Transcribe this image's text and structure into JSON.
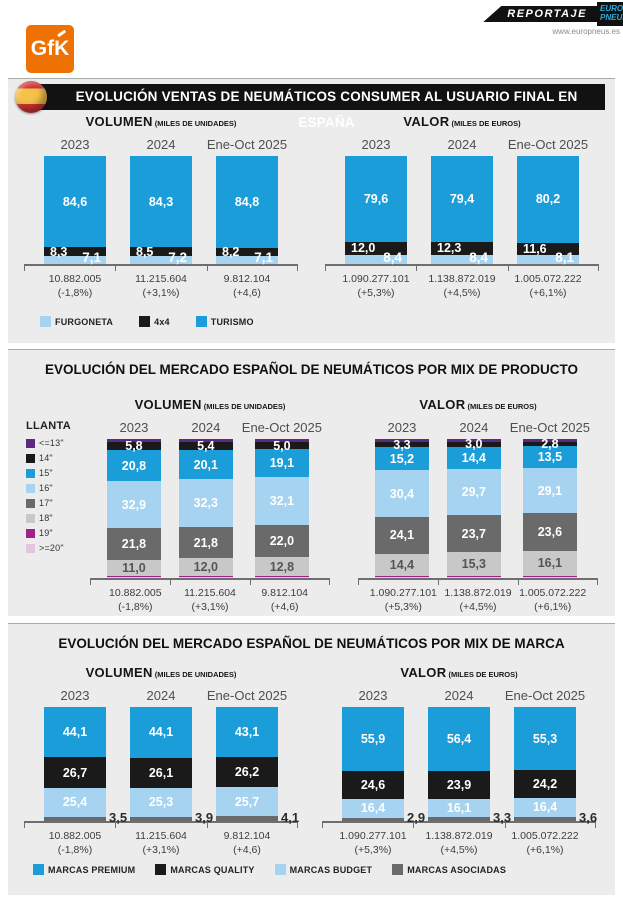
{
  "header": {
    "gfk_logo": "GfK",
    "reportaje": "REPORTAJE",
    "europneus_line1": "EURO",
    "europneus_line2": "PNEUS",
    "website": "www.europneus.es"
  },
  "sections": [
    {
      "id": "consumer",
      "title": "EVOLUCIÓN VENTAS DE NEUMÁTICOS CONSUMER AL USUARIO FINAL EN ESPAÑA",
      "legend": [
        {
          "label": "FURGONETA",
          "color": "#a6d3f0"
        },
        {
          "label": "4x4",
          "color": "#1a1a1a"
        },
        {
          "label": "TURISMO",
          "color": "#1b9dd9"
        }
      ]
    },
    {
      "id": "producto",
      "title": "EVOLUCIÓN DEL MERCADO ESPAÑOL DE NEUMÁTICOS POR MIX DE PRODUCTO",
      "legend_title": "LLANTA",
      "legend": [
        {
          "label": "<=13\"",
          "color": "#5c2a80"
        },
        {
          "label": "14\"",
          "color": "#1a1a1a"
        },
        {
          "label": "15\"",
          "color": "#1b9dd9"
        },
        {
          "label": "16\"",
          "color": "#a6d3f0"
        },
        {
          "label": "17\"",
          "color": "#6a6a6a"
        },
        {
          "label": "18\"",
          "color": "#c8c8c8"
        },
        {
          "label": "19\"",
          "color": "#a0218c"
        },
        {
          "label": ">=20\"",
          "color": "#e2c6de"
        }
      ]
    },
    {
      "id": "marca",
      "title": "EVOLUCIÓN DEL MERCADO ESPAÑOL DE NEUMÁTICOS POR MIX DE MARCA",
      "legend": [
        {
          "label": "MARCAS PREMIUM",
          "color": "#1b9dd9"
        },
        {
          "label": "MARCAS QUALITY",
          "color": "#1a1a1a"
        },
        {
          "label": "MARCAS BUDGET",
          "color": "#a6d3f0"
        },
        {
          "label": "MARCAS ASOCIADAS",
          "color": "#6a6a6a"
        }
      ]
    }
  ],
  "chart_data": [
    {
      "id": "consumer-volumen",
      "type": "stacked-bar",
      "title": "VOLUMEN",
      "unit": "(MILES DE UNIDADES)",
      "categories": [
        "2023",
        "2024",
        "Ene-Oct 2025"
      ],
      "series": [
        {
          "name": "TURISMO",
          "color": "#1b9dd9",
          "label_pos": "center",
          "values": [
            84.6,
            84.3,
            84.8
          ]
        },
        {
          "name": "4x4",
          "color": "#1a1a1a",
          "label_pos": "left",
          "values": [
            8.3,
            8.5,
            8.2
          ]
        },
        {
          "name": "FURGONETA",
          "color": "#a6d3f0",
          "label_pos": "right-overlap",
          "values": [
            7.1,
            7.2,
            7.1
          ]
        }
      ],
      "totals": [
        "10.882.005",
        "11.215.604",
        "9.812.104"
      ],
      "growth": [
        "(-1,8%)",
        "(+3,1%)",
        "(+4,6)"
      ]
    },
    {
      "id": "consumer-valor",
      "type": "stacked-bar",
      "title": "VALOR",
      "unit": "(MILES DE EUROS)",
      "categories": [
        "2023",
        "2024",
        "Ene-Oct 2025"
      ],
      "series": [
        {
          "name": "TURISMO",
          "color": "#1b9dd9",
          "label_pos": "center",
          "values": [
            79.6,
            79.4,
            80.2
          ]
        },
        {
          "name": "4x4",
          "color": "#1a1a1a",
          "label_pos": "left",
          "values": [
            12.0,
            12.3,
            11.6
          ]
        },
        {
          "name": "FURGONETA",
          "color": "#a6d3f0",
          "label_pos": "right-overlap",
          "values": [
            8.4,
            8.4,
            8.1
          ]
        }
      ],
      "totals": [
        "1.090.277.101",
        "1.138.872.019",
        "1.005.072.222"
      ],
      "growth": [
        "(+5,3%)",
        "(+4,5%)",
        "(+6,1%)"
      ]
    },
    {
      "id": "producto-volumen",
      "type": "stacked-bar",
      "title": "VOLUMEN",
      "unit": "(MILES DE UNIDADES)",
      "categories": [
        "2023",
        "2024",
        "Ene-Oct 2025"
      ],
      "series": [
        {
          "name": "<=13\"",
          "color": "#5c2a80",
          "sliver": true
        },
        {
          "name": "14\"",
          "color": "#1a1a1a",
          "label_pos": "center",
          "values": [
            5.8,
            5.4,
            5.0
          ]
        },
        {
          "name": "15\"",
          "color": "#1b9dd9",
          "label_pos": "center",
          "values": [
            20.8,
            20.1,
            19.1
          ]
        },
        {
          "name": "16\"",
          "color": "#a6d3f0",
          "label_pos": "center",
          "values": [
            32.9,
            32.3,
            32.1
          ]
        },
        {
          "name": "17\"",
          "color": "#6a6a6a",
          "label_pos": "center",
          "values": [
            21.8,
            21.8,
            22.0
          ]
        },
        {
          "name": "18\"",
          "color": "#c8c8c8",
          "label_pos": "center",
          "label_color": "#555555",
          "values": [
            11.0,
            12.0,
            12.8
          ]
        },
        {
          "name": "19\"",
          "color": "#a0218c",
          "sliver": true
        },
        {
          "name": ">=20\"",
          "color": "#e2c6de",
          "sliver": true
        }
      ],
      "totals": [
        "10.882.005",
        "11.215.604",
        "9.812.104"
      ],
      "growth": [
        "(-1,8%)",
        "(+3,1%)",
        "(+4,6)"
      ]
    },
    {
      "id": "producto-valor",
      "type": "stacked-bar",
      "title": "VALOR",
      "unit": "(MILES DE EUROS)",
      "categories": [
        "2023",
        "2024",
        "Ene-Oct 2025"
      ],
      "series": [
        {
          "name": "<=13\"",
          "color": "#5c2a80",
          "sliver": true
        },
        {
          "name": "14\"",
          "color": "#1a1a1a",
          "label_pos": "center",
          "values": [
            3.3,
            3.0,
            2.8
          ]
        },
        {
          "name": "15\"",
          "color": "#1b9dd9",
          "label_pos": "center",
          "values": [
            15.2,
            14.4,
            13.5
          ]
        },
        {
          "name": "16\"",
          "color": "#a6d3f0",
          "label_pos": "center",
          "values": [
            30.4,
            29.7,
            29.1
          ]
        },
        {
          "name": "17\"",
          "color": "#6a6a6a",
          "label_pos": "center",
          "values": [
            24.1,
            23.7,
            23.6
          ]
        },
        {
          "name": "18\"",
          "color": "#c8c8c8",
          "label_pos": "center",
          "label_color": "#555555",
          "values": [
            14.4,
            15.3,
            16.1
          ]
        },
        {
          "name": "19\"",
          "color": "#a0218c",
          "sliver": true
        },
        {
          "name": ">=20\"",
          "color": "#e2c6de",
          "sliver": true
        }
      ],
      "totals": [
        "1.090.277.101",
        "1.138.872.019",
        "1.005.072.222"
      ],
      "growth": [
        "(+5,3%)",
        "(+4,5%)",
        "(+6,1%)"
      ]
    },
    {
      "id": "marca-volumen",
      "type": "stacked-bar",
      "title": "VOLUMEN",
      "unit": "(MILES DE UNIDADES)",
      "categories": [
        "2023",
        "2024",
        "Ene-Oct 2025"
      ],
      "series": [
        {
          "name": "MARCAS PREMIUM",
          "color": "#1b9dd9",
          "label_pos": "center",
          "values": [
            44.1,
            44.1,
            43.1
          ]
        },
        {
          "name": "MARCAS QUALITY",
          "color": "#1a1a1a",
          "label_pos": "center",
          "values": [
            26.7,
            26.1,
            26.2
          ]
        },
        {
          "name": "MARCAS BUDGET",
          "color": "#a6d3f0",
          "label_pos": "center",
          "values": [
            25.4,
            25.3,
            25.7
          ]
        },
        {
          "name": "MARCAS ASOCIADAS",
          "color": "#6a6a6a",
          "label_pos": "outside-right",
          "label_color": "#2b2b2b",
          "values": [
            3.5,
            3.9,
            4.1
          ]
        }
      ],
      "totals": [
        "10.882.005",
        "11.215.604",
        "9.812.104"
      ],
      "growth": [
        "(-1,8%)",
        "(+3,1%)",
        "(+4,6)"
      ]
    },
    {
      "id": "marca-valor",
      "type": "stacked-bar",
      "title": "VALOR",
      "unit": "(MILES DE EUROS)",
      "categories": [
        "2023",
        "2024",
        "Ene-Oct 2025"
      ],
      "series": [
        {
          "name": "MARCAS PREMIUM",
          "color": "#1b9dd9",
          "label_pos": "center",
          "values": [
            55.9,
            56.4,
            55.3
          ]
        },
        {
          "name": "MARCAS QUALITY",
          "color": "#1a1a1a",
          "label_pos": "center",
          "values": [
            24.6,
            23.9,
            24.2
          ]
        },
        {
          "name": "MARCAS BUDGET",
          "color": "#a6d3f0",
          "label_pos": "center",
          "values": [
            16.4,
            16.1,
            16.4
          ]
        },
        {
          "name": "MARCAS ASOCIADAS",
          "color": "#6a6a6a",
          "label_pos": "outside-right",
          "label_color": "#2b2b2b",
          "values": [
            2.9,
            3.3,
            3.6
          ]
        }
      ],
      "totals": [
        "1.090.277.101",
        "1.138.872.019",
        "1.005.072.222"
      ],
      "growth": [
        "(+5,3%)",
        "(+4,5%)",
        "(+6,1%)"
      ]
    }
  ]
}
